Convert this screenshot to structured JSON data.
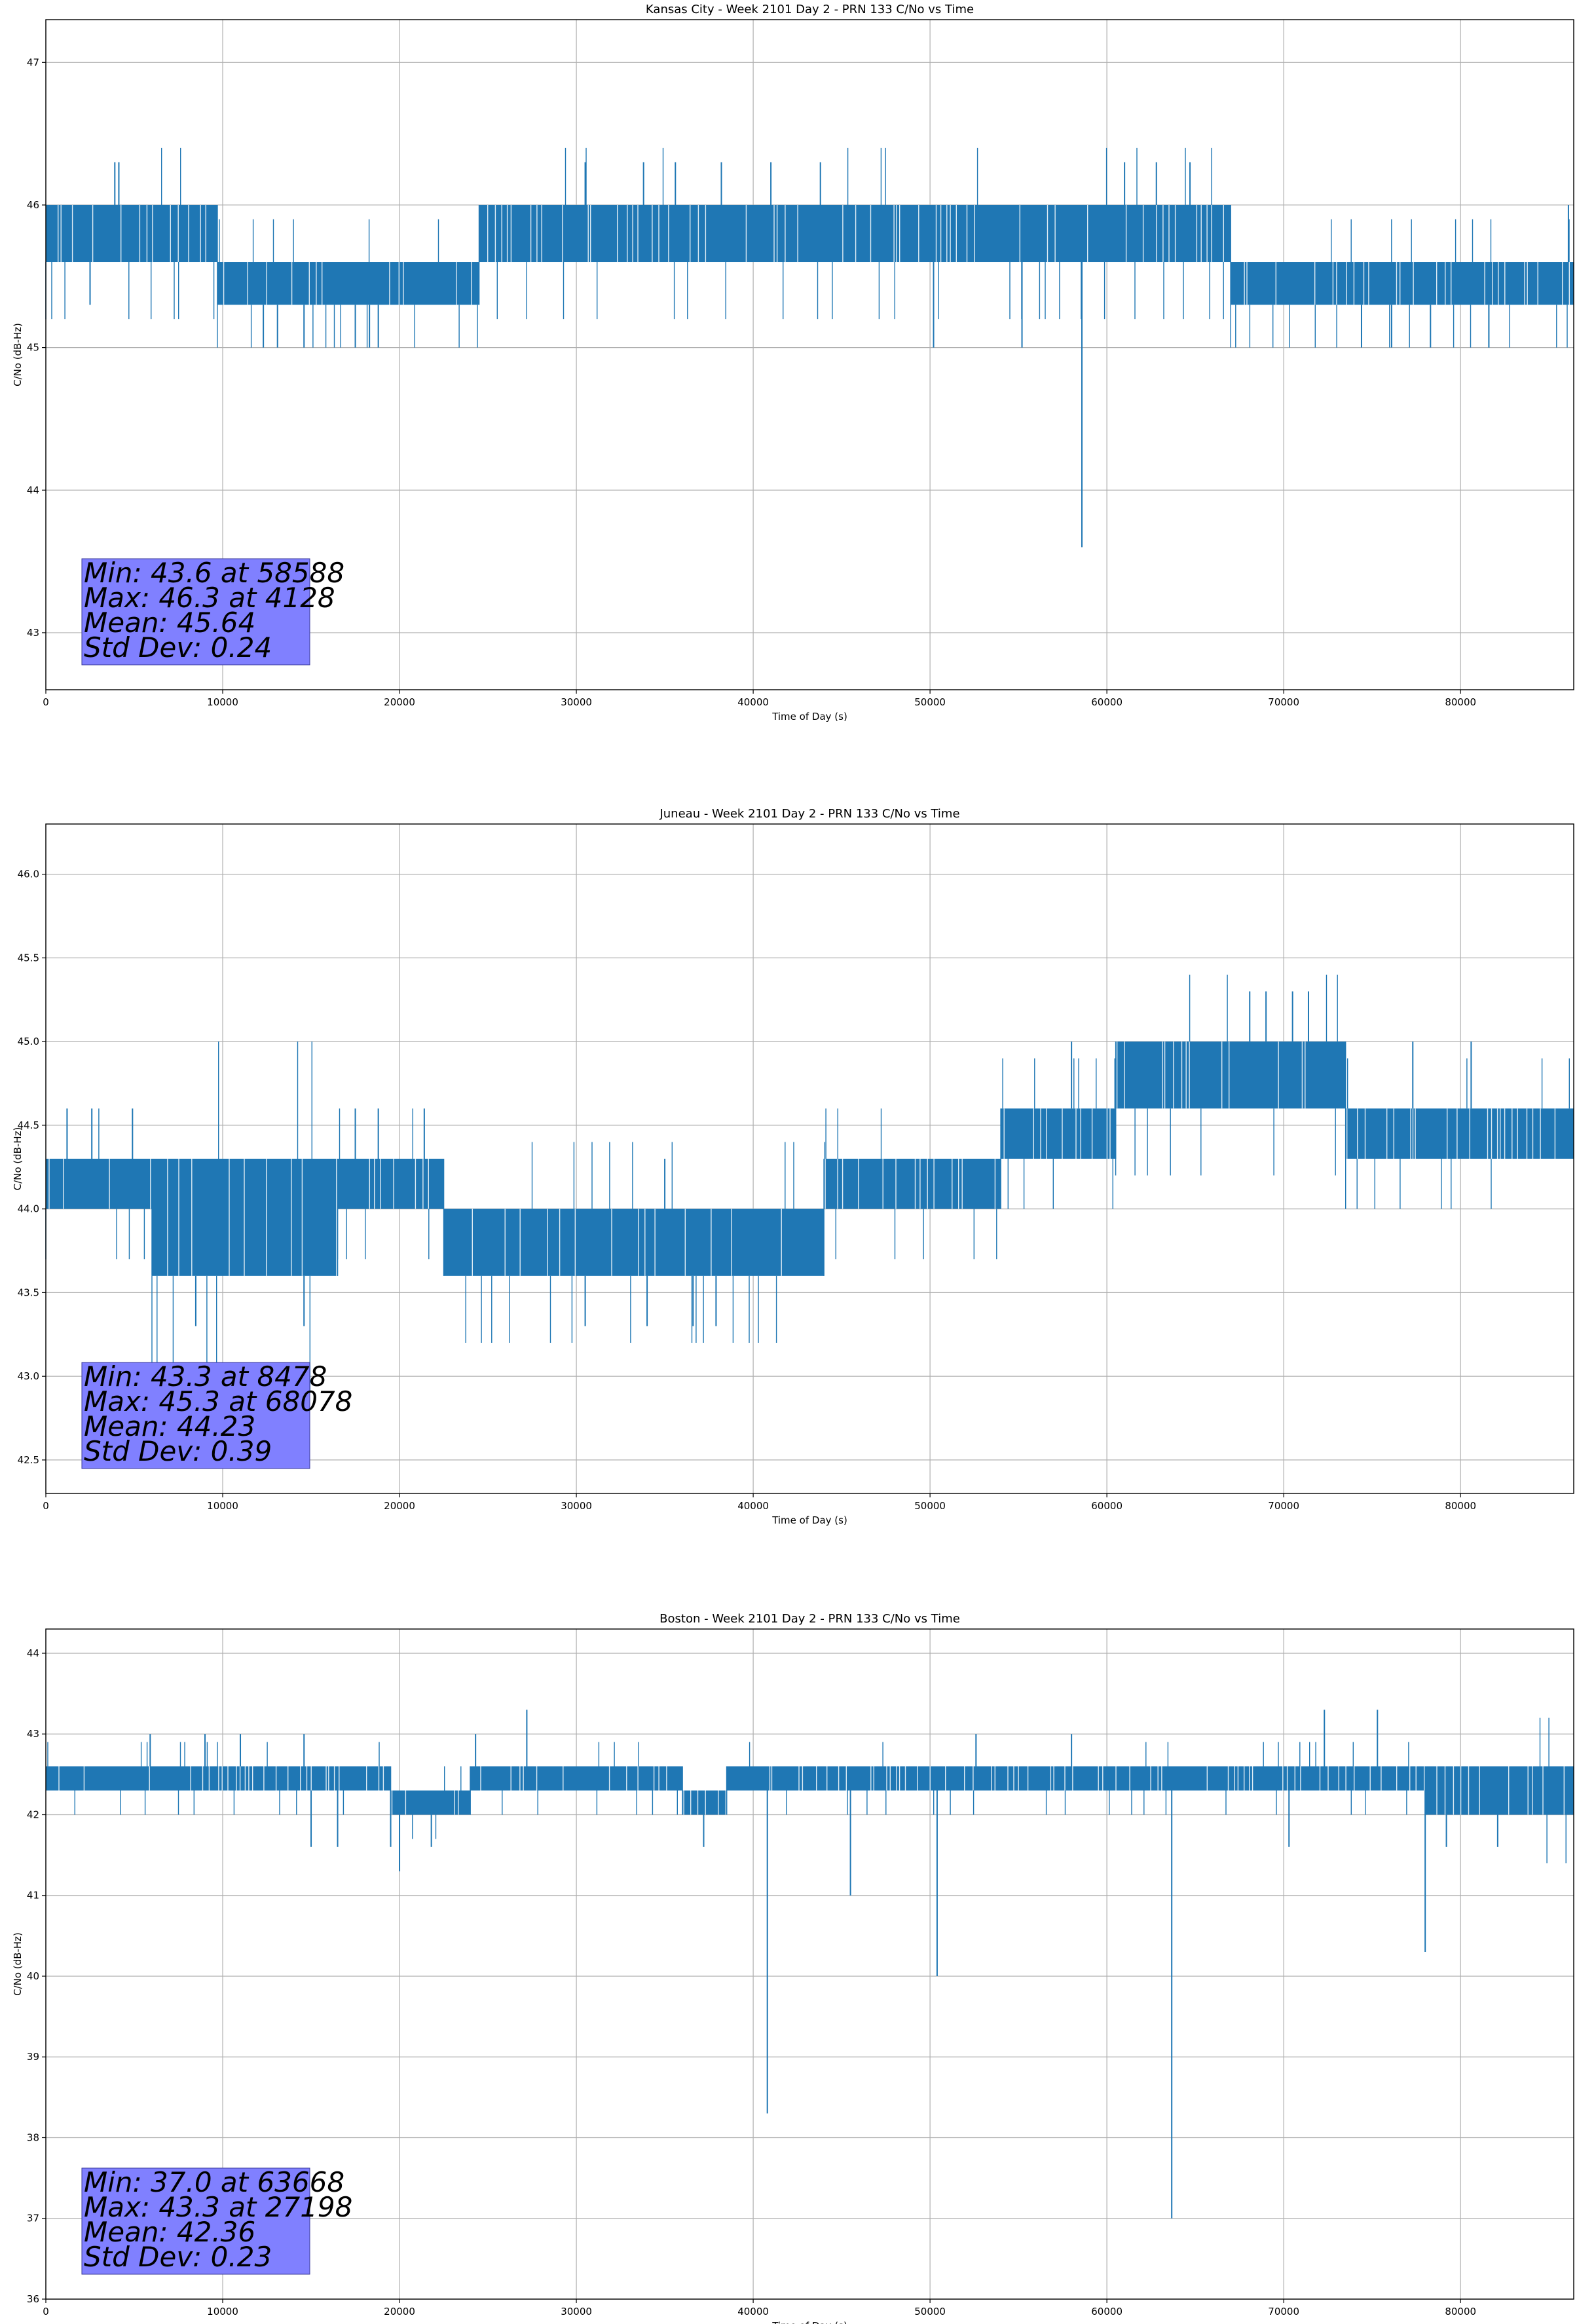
{
  "colors": {
    "series": "#1f77b4",
    "grid": "#b0b0b0",
    "stats_box": "#8080ff"
  },
  "chart_data": [
    {
      "type": "line",
      "title": "Kansas City - Week 2101 Day 2 - PRN 133 C/No vs Time",
      "xlabel": "Time of Day (s)",
      "ylabel": "C/No (dB-Hz)",
      "xlim": [
        0,
        86400
      ],
      "ylim": [
        42.6,
        47.3
      ],
      "xticks": [
        0,
        10000,
        20000,
        30000,
        40000,
        50000,
        60000,
        70000,
        80000
      ],
      "yticks": [
        43,
        44,
        45,
        46,
        47
      ],
      "ytick_labels": [
        "43",
        "44",
        "45",
        "46",
        "47"
      ],
      "grid": true,
      "bands": [
        {
          "x": [
            0,
            9700
          ],
          "y": [
            45.6,
            46.0
          ]
        },
        {
          "x": [
            9700,
            24500
          ],
          "y": [
            45.3,
            45.6
          ]
        },
        {
          "x": [
            24500,
            57000
          ],
          "y": [
            45.6,
            46.0
          ]
        },
        {
          "x": [
            57000,
            67000
          ],
          "y": [
            45.6,
            46.0
          ]
        },
        {
          "x": [
            67000,
            86400
          ],
          "y": [
            45.3,
            45.6
          ]
        }
      ],
      "spikes": [
        {
          "x": 3900,
          "y": 46.3
        },
        {
          "x": 4128,
          "y": 46.3
        },
        {
          "x": 2500,
          "y": 45.3
        },
        {
          "x": 12300,
          "y": 45.0
        },
        {
          "x": 13100,
          "y": 45.0
        },
        {
          "x": 14600,
          "y": 45.0
        },
        {
          "x": 17500,
          "y": 45.0
        },
        {
          "x": 18300,
          "y": 45.0
        },
        {
          "x": 18800,
          "y": 45.0
        },
        {
          "x": 30500,
          "y": 46.3
        },
        {
          "x": 33800,
          "y": 46.3
        },
        {
          "x": 35600,
          "y": 46.3
        },
        {
          "x": 38200,
          "y": 46.3
        },
        {
          "x": 41000,
          "y": 46.3
        },
        {
          "x": 43800,
          "y": 46.3
        },
        {
          "x": 50200,
          "y": 45.0
        },
        {
          "x": 55200,
          "y": 45.0
        },
        {
          "x": 58588,
          "y": 43.6
        },
        {
          "x": 61000,
          "y": 46.3
        },
        {
          "x": 62800,
          "y": 46.3
        },
        {
          "x": 64700,
          "y": 46.3
        },
        {
          "x": 74400,
          "y": 45.0
        },
        {
          "x": 76100,
          "y": 45.0
        },
        {
          "x": 78300,
          "y": 45.0
        },
        {
          "x": 81600,
          "y": 45.0
        },
        {
          "x": 86100,
          "y": 46.0
        }
      ],
      "stats": [
        "Min: 43.6 at 58588",
        "Max: 46.3 at 4128",
        "Mean: 45.64",
        "Std Dev: 0.24"
      ]
    },
    {
      "type": "line",
      "title": "Juneau - Week 2101 Day 2 - PRN 133 C/No vs Time",
      "xlabel": "Time of Day (s)",
      "ylabel": "C/No (dB-Hz)",
      "xlim": [
        0,
        86400
      ],
      "ylim": [
        42.3,
        46.3
      ],
      "xticks": [
        0,
        10000,
        20000,
        30000,
        40000,
        50000,
        60000,
        70000,
        80000
      ],
      "yticks": [
        42.5,
        43.0,
        43.5,
        44.0,
        44.5,
        45.0,
        45.5,
        46.0
      ],
      "ytick_labels": [
        "42.5",
        "43.0",
        "43.5",
        "44.0",
        "44.5",
        "45.0",
        "45.5",
        "46.0"
      ],
      "grid": true,
      "bands": [
        {
          "x": [
            0,
            6000
          ],
          "y": [
            44.0,
            44.3
          ]
        },
        {
          "x": [
            6000,
            16500
          ],
          "y": [
            43.6,
            44.3
          ]
        },
        {
          "x": [
            16500,
            22500
          ],
          "y": [
            44.0,
            44.3
          ]
        },
        {
          "x": [
            22500,
            34000
          ],
          "y": [
            43.6,
            44.0
          ]
        },
        {
          "x": [
            34000,
            44000
          ],
          "y": [
            43.6,
            44.0
          ]
        },
        {
          "x": [
            44000,
            54000
          ],
          "y": [
            44.0,
            44.3
          ]
        },
        {
          "x": [
            54000,
            60500
          ],
          "y": [
            44.3,
            44.6
          ]
        },
        {
          "x": [
            60500,
            73500
          ],
          "y": [
            44.6,
            45.0
          ]
        },
        {
          "x": [
            73500,
            86400
          ],
          "y": [
            44.3,
            44.6
          ]
        }
      ],
      "spikes": [
        {
          "x": 1200,
          "y": 44.6
        },
        {
          "x": 2600,
          "y": 44.6
        },
        {
          "x": 4900,
          "y": 44.6
        },
        {
          "x": 8478,
          "y": 43.3
        },
        {
          "x": 14600,
          "y": 43.3
        },
        {
          "x": 17500,
          "y": 44.6
        },
        {
          "x": 18800,
          "y": 44.6
        },
        {
          "x": 21400,
          "y": 44.6
        },
        {
          "x": 30500,
          "y": 43.3
        },
        {
          "x": 34000,
          "y": 43.3
        },
        {
          "x": 36600,
          "y": 43.3
        },
        {
          "x": 37900,
          "y": 43.3
        },
        {
          "x": 35000,
          "y": 44.3
        },
        {
          "x": 58000,
          "y": 45.0
        },
        {
          "x": 68078,
          "y": 45.3
        },
        {
          "x": 69000,
          "y": 45.3
        },
        {
          "x": 70500,
          "y": 45.3
        },
        {
          "x": 71400,
          "y": 45.3
        },
        {
          "x": 77300,
          "y": 45.0
        },
        {
          "x": 80600,
          "y": 45.0
        }
      ],
      "stats": [
        "Min: 43.3 at 8478",
        "Max: 45.3 at 68078",
        "Mean: 44.23",
        "Std Dev: 0.39"
      ]
    },
    {
      "type": "line",
      "title": "Boston - Week 2101 Day 2 - PRN 133 C/No vs Time",
      "xlabel": "Time of Day (s)",
      "ylabel": "C/No (dB-Hz)",
      "xlim": [
        0,
        86400
      ],
      "ylim": [
        36.0,
        44.3
      ],
      "xticks": [
        0,
        10000,
        20000,
        30000,
        40000,
        50000,
        60000,
        70000,
        80000
      ],
      "yticks": [
        36,
        37,
        38,
        39,
        40,
        41,
        42,
        43,
        44
      ],
      "ytick_labels": [
        "36",
        "37",
        "38",
        "39",
        "40",
        "41",
        "42",
        "43",
        "44"
      ],
      "grid": true,
      "bands": [
        {
          "x": [
            0,
            19500
          ],
          "y": [
            42.3,
            42.6
          ]
        },
        {
          "x": [
            19500,
            24000
          ],
          "y": [
            42.0,
            42.3
          ]
        },
        {
          "x": [
            24000,
            36000
          ],
          "y": [
            42.3,
            42.6
          ]
        },
        {
          "x": [
            36000,
            38500
          ],
          "y": [
            42.0,
            42.3
          ]
        },
        {
          "x": [
            38500,
            78000
          ],
          "y": [
            42.3,
            42.6
          ]
        },
        {
          "x": [
            78000,
            86400
          ],
          "y": [
            42.0,
            42.6
          ]
        }
      ],
      "spikes": [
        {
          "x": 5900,
          "y": 43.0
        },
        {
          "x": 9000,
          "y": 43.0
        },
        {
          "x": 11000,
          "y": 43.0
        },
        {
          "x": 14600,
          "y": 43.0
        },
        {
          "x": 15000,
          "y": 41.6
        },
        {
          "x": 16500,
          "y": 41.6
        },
        {
          "x": 19500,
          "y": 41.6
        },
        {
          "x": 20000,
          "y": 41.3
        },
        {
          "x": 21800,
          "y": 41.6
        },
        {
          "x": 24300,
          "y": 43.0
        },
        {
          "x": 27198,
          "y": 43.3
        },
        {
          "x": 37200,
          "y": 41.6
        },
        {
          "x": 40800,
          "y": 38.3
        },
        {
          "x": 45500,
          "y": 41.0
        },
        {
          "x": 50400,
          "y": 40.0
        },
        {
          "x": 52600,
          "y": 43.0
        },
        {
          "x": 58000,
          "y": 43.0
        },
        {
          "x": 63668,
          "y": 37.0
        },
        {
          "x": 70300,
          "y": 41.6
        },
        {
          "x": 72300,
          "y": 43.3
        },
        {
          "x": 75300,
          "y": 43.3
        },
        {
          "x": 78000,
          "y": 40.3
        },
        {
          "x": 79200,
          "y": 41.6
        },
        {
          "x": 82100,
          "y": 41.6
        }
      ],
      "stats": [
        "Min: 37.0 at 63668",
        "Max: 43.3 at 27198",
        "Mean: 42.36",
        "Std Dev: 0.23"
      ]
    }
  ]
}
